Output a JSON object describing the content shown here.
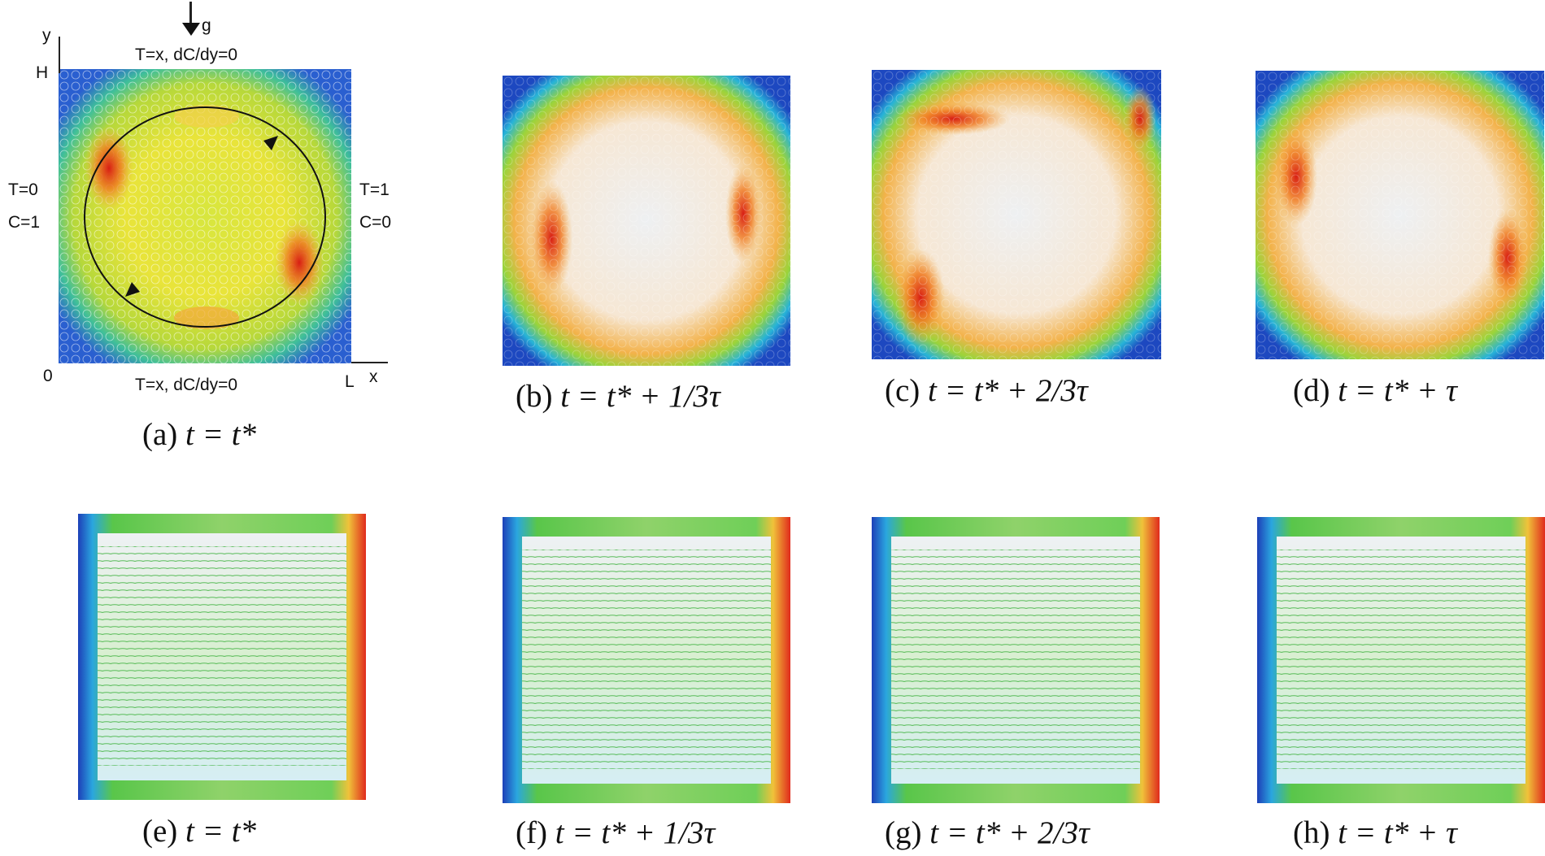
{
  "panel_a": {
    "axis_y": "y",
    "axis_h": "H",
    "origin": "0",
    "axis_l": "L",
    "axis_x": "x",
    "gravity": "g",
    "top_bc": "T=x, dC/dy=0",
    "bottom_bc": "T=x, dC/dy=0",
    "left_bc_1": "T=0",
    "left_bc_2": "C=1",
    "right_bc_1": "T=1",
    "right_bc_2": "C=0"
  },
  "captions": [
    {
      "id": "a",
      "label": "(a)",
      "expr": "t = t*"
    },
    {
      "id": "b",
      "label": "(b)",
      "expr": "t = t*  + 1/3τ"
    },
    {
      "id": "c",
      "label": "(c)",
      "expr": "t = t*  + 2/3τ"
    },
    {
      "id": "d",
      "label": "(d)",
      "expr": "t = t*  + τ"
    },
    {
      "id": "e",
      "label": "(e)",
      "expr": "t = t*"
    },
    {
      "id": "f",
      "label": "(f)",
      "expr": "t = t*  + 1/3τ"
    },
    {
      "id": "g",
      "label": "(g)",
      "expr": "t = t*  + 2/3τ"
    },
    {
      "id": "h",
      "label": "(h)",
      "expr": "t = t*  + τ"
    }
  ],
  "colors": {
    "blue": "#1f3fb5",
    "cyan": "#2ab6e0",
    "green": "#5cc83a",
    "yellow": "#f0e23a",
    "orange": "#f2902a",
    "red": "#e0281c",
    "light": "#e6edf2"
  }
}
